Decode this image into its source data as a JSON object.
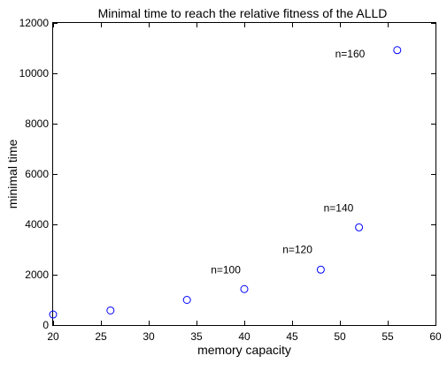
{
  "chart_data": {
    "type": "scatter",
    "title": "Minimal time to reach the relative fitness of the ALLD",
    "xlabel": "memory capacity",
    "ylabel": "minimal time",
    "xlim": [
      20,
      60
    ],
    "ylim": [
      0,
      12000
    ],
    "xticks": [
      20,
      25,
      30,
      35,
      40,
      45,
      50,
      55,
      60
    ],
    "yticks": [
      0,
      2000,
      4000,
      6000,
      8000,
      10000,
      12000
    ],
    "grid": false,
    "marker": "circle",
    "marker_color": "#0000ff",
    "x": [
      20,
      26,
      34,
      40,
      48,
      52,
      56
    ],
    "y": [
      420,
      580,
      1000,
      1430,
      2200,
      3880,
      10920
    ],
    "annotations": [
      {
        "text": "n=100",
        "x": 36.5,
        "y": 2200
      },
      {
        "text": "n=120",
        "x": 44.0,
        "y": 3000
      },
      {
        "text": "n=140",
        "x": 48.3,
        "y": 4650
      },
      {
        "text": "n=160",
        "x": 49.5,
        "y": 10780
      }
    ]
  }
}
